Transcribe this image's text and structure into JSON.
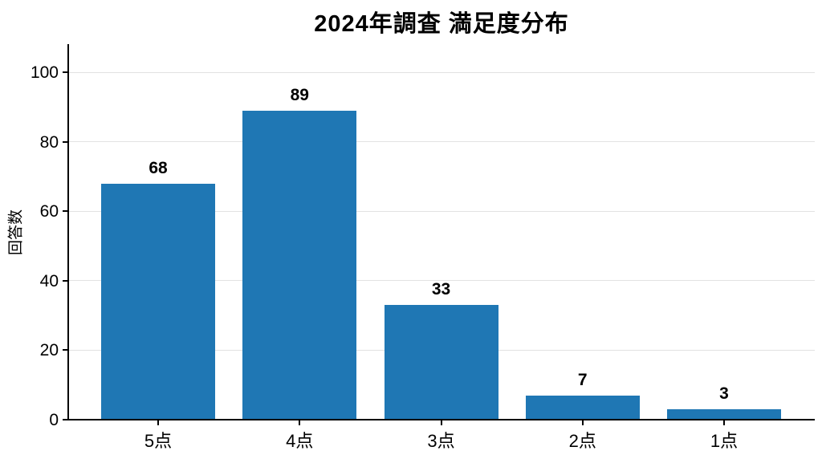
{
  "title": "2024年調査 満足度分布",
  "chart_data": {
    "type": "bar",
    "title": "2024年調査 満足度分布",
    "categories": [
      "5点",
      "4点",
      "3点",
      "2点",
      "1点"
    ],
    "values": [
      68,
      89,
      33,
      7,
      3
    ],
    "xlabel": "",
    "ylabel": "回答数",
    "ylim": [
      0,
      108
    ],
    "yticks": [
      0,
      20,
      40,
      60,
      80,
      100
    ],
    "bar_color": "#1f77b4",
    "grid": "horizontal",
    "gridline_color": "#e2e2e2",
    "axis_color": "#000000",
    "text_color": "#000000",
    "value_labels": [
      68,
      89,
      33,
      7,
      3
    ],
    "legend": null
  }
}
